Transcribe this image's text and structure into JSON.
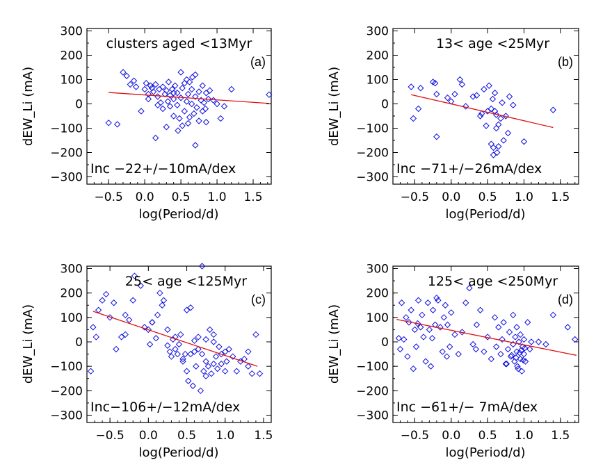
{
  "chart_data": [
    {
      "type": "scatter",
      "panel": "(a)",
      "title": "clusters aged <13Myr",
      "annotation": "Inc −22+/−10mA/dex",
      "xlabel": "log(Period/d)",
      "ylabel": "dEW_Li (mA)",
      "xlim": [
        -0.8,
        1.75
      ],
      "ylim": [
        -330,
        310
      ],
      "xticks": [
        -0.5,
        0.0,
        0.5,
        1.0,
        1.5
      ],
      "xtick_labels": [
        "−0.5",
        "0.0",
        "0.5",
        "1.0",
        "1.5"
      ],
      "yticks": [
        300,
        200,
        100,
        0,
        -100,
        -200,
        -300
      ],
      "ytick_labels": [
        "300",
        "200",
        "100",
        "0",
        "−100",
        "−200",
        "−300"
      ],
      "fit": {
        "x": [
          -0.5,
          1.72
        ],
        "y": [
          47,
          2
        ]
      },
      "points": {
        "x": [
          -0.5,
          -0.38,
          -0.3,
          -0.25,
          -0.2,
          -0.15,
          -0.12,
          -0.05,
          0.0,
          0.02,
          0.05,
          0.05,
          0.08,
          0.1,
          0.12,
          0.15,
          0.15,
          0.18,
          0.2,
          0.22,
          0.25,
          0.25,
          0.28,
          0.3,
          0.3,
          0.32,
          0.35,
          0.35,
          0.38,
          0.4,
          0.4,
          0.42,
          0.45,
          0.45,
          0.48,
          0.5,
          0.5,
          0.52,
          0.55,
          0.55,
          0.58,
          0.6,
          0.6,
          0.62,
          0.65,
          0.65,
          0.68,
          0.7,
          0.7,
          0.72,
          0.75,
          0.75,
          0.78,
          0.8,
          0.8,
          0.82,
          0.85,
          0.85,
          0.88,
          0.9,
          0.95,
          1.0,
          1.05,
          1.1,
          1.2,
          1.72,
          0.18,
          0.33,
          0.46,
          0.58,
          0.7,
          0.84,
          0.62,
          0.4,
          0.52,
          0.66
        ],
        "y": [
          -78,
          -84,
          130,
          115,
          80,
          95,
          70,
          -30,
          60,
          85,
          40,
          20,
          75,
          65,
          50,
          -140,
          80,
          30,
          60,
          5,
          70,
          -20,
          40,
          -95,
          55,
          10,
          35,
          -10,
          60,
          -50,
          20,
          75,
          45,
          -5,
          -60,
          130,
          25,
          65,
          -30,
          85,
          10,
          -80,
          40,
          90,
          0,
          60,
          -40,
          120,
          30,
          -15,
          50,
          -70,
          15,
          75,
          -30,
          5,
          -75,
          45,
          20,
          55,
          15,
          0,
          -60,
          -10,
          60,
          38,
          -5,
          90,
          -110,
          100,
          -170,
          -20,
          -55,
          45,
          -90,
          110
        ]
      }
    },
    {
      "type": "scatter",
      "panel": "(b)",
      "title": "13< age <25Myr",
      "annotation": "Inc −71+/−26mA/dex",
      "xlabel": "log(Period/d)",
      "ylabel": "dEW_Li (mA)",
      "xlim": [
        -0.8,
        1.75
      ],
      "ylim": [
        -330,
        310
      ],
      "xticks": [
        -0.5,
        0.0,
        0.5,
        1.0,
        1.5
      ],
      "xtick_labels": [
        "−0.5",
        "0.0",
        "0.5",
        "1.0",
        "1.5"
      ],
      "yticks": [
        300,
        200,
        100,
        0,
        -100,
        -200,
        -300
      ],
      "ytick_labels": [
        "300",
        "200",
        "100",
        "0",
        "−100",
        "−200",
        "−300"
      ],
      "fit": {
        "x": [
          -0.55,
          1.4
        ],
        "y": [
          38,
          -97
        ]
      },
      "points": {
        "x": [
          -0.55,
          -0.52,
          -0.45,
          -0.42,
          -0.25,
          -0.22,
          -0.2,
          -0.2,
          -0.05,
          0.0,
          0.05,
          0.12,
          0.15,
          0.2,
          0.3,
          0.35,
          0.4,
          0.42,
          0.45,
          0.48,
          0.5,
          0.52,
          0.55,
          0.55,
          0.57,
          0.58,
          0.6,
          0.6,
          0.62,
          0.62,
          0.65,
          0.65,
          0.68,
          0.7,
          0.72,
          0.75,
          0.78,
          0.8,
          0.85,
          1.0,
          1.4,
          0.58,
          0.63
        ],
        "y": [
          70,
          -60,
          -20,
          65,
          90,
          85,
          -135,
          40,
          25,
          10,
          40,
          100,
          80,
          -10,
          30,
          35,
          -50,
          -40,
          60,
          -90,
          -30,
          75,
          -165,
          -20,
          20,
          -180,
          45,
          -30,
          -100,
          -45,
          -175,
          -85,
          -60,
          5,
          -150,
          -50,
          -120,
          30,
          -5,
          -155,
          -25,
          -210,
          -200
        ]
      }
    },
    {
      "type": "scatter",
      "panel": "(c)",
      "title": "25< age <125Myr",
      "annotation": "Inc−106+/−12mA/dex",
      "xlabel": "log(Period/d)",
      "ylabel": "dEW_Li (mA)",
      "xlim": [
        -0.8,
        1.6
      ],
      "ylim": [
        -330,
        310
      ],
      "xticks": [
        -0.5,
        0.0,
        0.5,
        1.0,
        1.5
      ],
      "xtick_labels": [
        "−0.5",
        "0.0",
        "0.5",
        "1.0",
        "1.5"
      ],
      "yticks": [
        300,
        200,
        100,
        0,
        -100,
        -200,
        -300
      ],
      "ytick_labels": [
        "300",
        "200",
        "100",
        "0",
        "−100",
        "−200",
        "−300"
      ],
      "fit": {
        "x": [
          -0.72,
          1.42
        ],
        "y": [
          125,
          -100
        ]
      },
      "points": {
        "x": [
          -0.75,
          -0.72,
          -0.68,
          -0.65,
          -0.55,
          -0.5,
          -0.45,
          -0.42,
          -0.35,
          -0.3,
          -0.25,
          -0.2,
          -0.18,
          -0.1,
          -0.05,
          0.0,
          0.02,
          0.05,
          0.1,
          0.12,
          0.15,
          0.18,
          0.2,
          0.25,
          0.28,
          0.3,
          0.32,
          0.35,
          0.38,
          0.4,
          0.42,
          0.45,
          0.48,
          0.5,
          0.5,
          0.52,
          0.55,
          0.55,
          0.58,
          0.6,
          0.62,
          0.65,
          0.65,
          0.68,
          0.7,
          0.72,
          0.75,
          0.75,
          0.78,
          0.8,
          0.82,
          0.85,
          0.85,
          0.88,
          0.9,
          0.92,
          0.95,
          1.0,
          1.02,
          1.05,
          1.1,
          1.15,
          1.2,
          1.25,
          1.3,
          1.35,
          1.4,
          1.45,
          0.7,
          0.85,
          -0.6,
          -0.3,
          0.05,
          0.35,
          0.6,
          0.95,
          1.3,
          0.45,
          0.75,
          1.0,
          0.25
        ],
        "y": [
          -120,
          60,
          20,
          130,
          195,
          100,
          160,
          -30,
          20,
          30,
          90,
          170,
          270,
          230,
          60,
          50,
          -10,
          80,
          15,
          110,
          200,
          150,
          170,
          50,
          -40,
          -60,
          10,
          -30,
          -50,
          -10,
          30,
          -80,
          -50,
          130,
          -120,
          -160,
          140,
          -50,
          -180,
          5,
          -100,
          -30,
          20,
          -200,
          -50,
          -120,
          -80,
          10,
          -100,
          50,
          -130,
          30,
          -90,
          -60,
          -110,
          -20,
          -50,
          -40,
          -80,
          -30,
          -60,
          -120,
          -80,
          -70,
          -40,
          -130,
          30,
          -130,
          310,
          0,
          170,
          110,
          80,
          20,
          -40,
          -90,
          -100,
          -70,
          -140,
          -120,
          -15
        ]
      }
    },
    {
      "type": "scatter",
      "panel": "(d)",
      "title": "125< age <250Myr",
      "annotation": "Inc −61+/− 7mA/dex",
      "xlabel": "log(Period/d)",
      "ylabel": "dEW_Li (mA)",
      "xlim": [
        -0.8,
        1.75
      ],
      "ylim": [
        -330,
        310
      ],
      "xticks": [
        -0.5,
        0.0,
        0.5,
        1.0,
        1.5
      ],
      "xtick_labels": [
        "−0.5",
        "0.0",
        "0.5",
        "1.0",
        "1.5"
      ],
      "yticks": [
        300,
        200,
        100,
        0,
        -100,
        -200,
        -300
      ],
      "ytick_labels": [
        "300",
        "200",
        "100",
        "0",
        "−100",
        "−200",
        "−300"
      ],
      "fit": {
        "x": [
          -0.75,
          1.72
        ],
        "y": [
          92,
          -55
        ]
      },
      "points": {
        "x": [
          -0.72,
          -0.7,
          -0.68,
          -0.65,
          -0.6,
          -0.58,
          -0.55,
          -0.52,
          -0.5,
          -0.48,
          -0.45,
          -0.42,
          -0.4,
          -0.38,
          -0.35,
          -0.32,
          -0.3,
          -0.28,
          -0.25,
          -0.22,
          -0.2,
          -0.18,
          -0.15,
          -0.12,
          -0.1,
          -0.08,
          -0.05,
          -0.02,
          0.0,
          0.05,
          0.1,
          0.15,
          0.2,
          0.25,
          0.3,
          0.35,
          0.4,
          0.45,
          0.5,
          0.55,
          0.6,
          0.62,
          0.65,
          0.68,
          0.7,
          0.72,
          0.75,
          0.78,
          0.8,
          0.82,
          0.85,
          0.85,
          0.87,
          0.88,
          0.9,
          0.9,
          0.92,
          0.93,
          0.95,
          0.95,
          0.97,
          0.98,
          1.0,
          1.0,
          1.02,
          1.05,
          1.08,
          1.1,
          1.2,
          1.3,
          1.4,
          1.6,
          1.7,
          0.83,
          0.91,
          0.96,
          -0.62,
          -0.46,
          -0.26,
          -0.06,
          0.34,
          0.76,
          0.89,
          0.99,
          1.01,
          0.94
        ],
        "y": [
          15,
          -30,
          160,
          10,
          -60,
          80,
          130,
          -110,
          50,
          -20,
          170,
          60,
          110,
          20,
          -80,
          160,
          50,
          -100,
          130,
          70,
          180,
          170,
          60,
          -40,
          100,
          150,
          70,
          -20,
          120,
          30,
          -50,
          40,
          160,
          220,
          -10,
          70,
          130,
          -40,
          20,
          -70,
          100,
          -20,
          60,
          -50,
          10,
          80,
          -90,
          -30,
          40,
          -60,
          -10,
          110,
          -80,
          20,
          -40,
          60,
          -110,
          0,
          -70,
          30,
          -120,
          -20,
          -50,
          10,
          -80,
          80,
          -30,
          0,
          0,
          -10,
          110,
          60,
          10,
          -55,
          -100,
          -35,
          100,
          75,
          15,
          -60,
          -30,
          -90,
          -65,
          -75,
          -25,
          -45
        ]
      }
    }
  ]
}
